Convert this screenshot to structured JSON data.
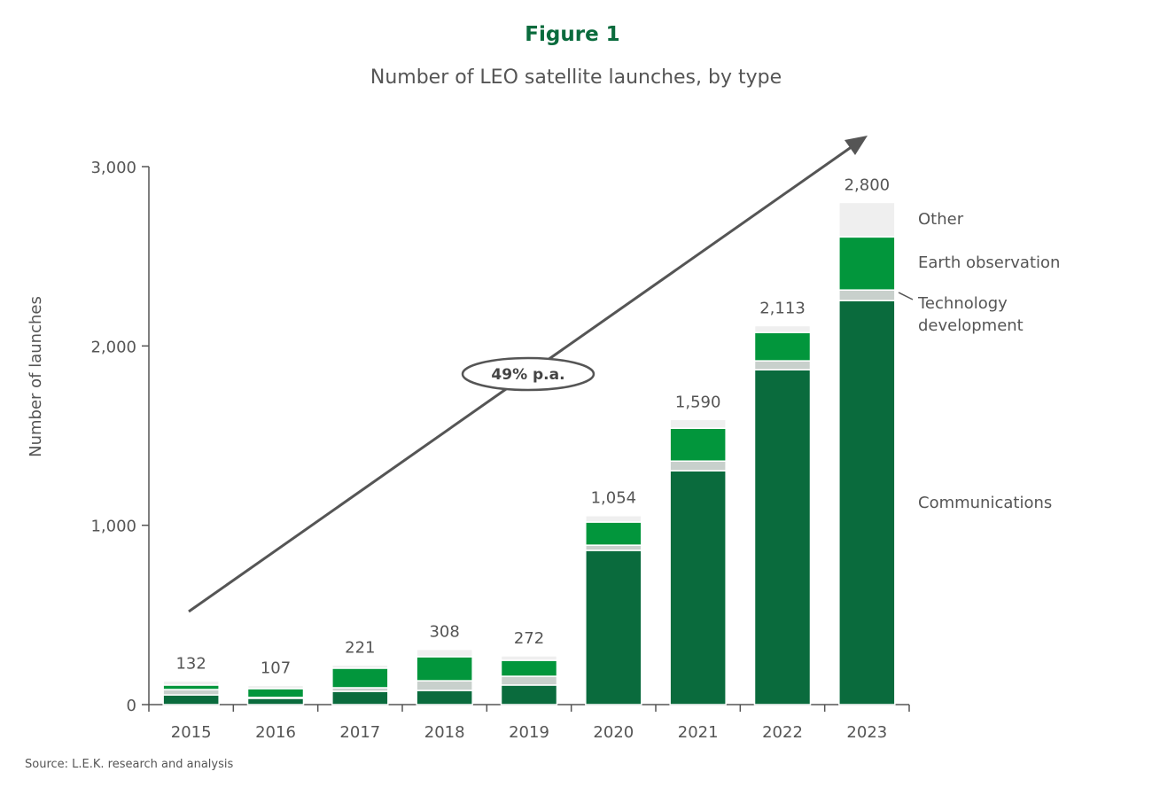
{
  "chart_data": {
    "type": "bar",
    "stacked": true,
    "figure_label": "Figure 1",
    "title": "Number of LEO satellite launches, by type",
    "ylabel": "Number of launches",
    "xlabel": "",
    "ylim": [
      0,
      3000
    ],
    "yticks": [
      0,
      1000,
      2000,
      3000
    ],
    "ytick_labels": [
      "0",
      "1,000",
      "2,000",
      "3,000"
    ],
    "categories": [
      "2015",
      "2016",
      "2017",
      "2018",
      "2019",
      "2020",
      "2021",
      "2022",
      "2023"
    ],
    "series": [
      {
        "name": "Communications",
        "color": "#0a6b3d",
        "values": [
          54,
          35,
          74,
          79,
          109,
          860,
          1304,
          1867,
          2253
        ]
      },
      {
        "name": "Technology development",
        "color": "#c8d0cc",
        "values": [
          30,
          5,
          20,
          54,
          49,
          29,
          54,
          50,
          59
        ]
      },
      {
        "name": "Earth observation",
        "color": "#02963c",
        "values": [
          25,
          49,
          109,
          134,
          89,
          129,
          183,
          158,
          296
        ]
      },
      {
        "name": "Other",
        "color": "#efefef",
        "values": [
          23,
          18,
          18,
          41,
          25,
          36,
          49,
          38,
          192
        ]
      }
    ],
    "totals": [
      "132",
      "107",
      "221",
      "308",
      "272",
      "1,054",
      "1,590",
      "2,113",
      "2,800"
    ],
    "legend_placement": "right, aligned with 2023 bar",
    "legend_labels": [
      "Other",
      "Earth observation",
      "Technology",
      "development",
      "Communications"
    ],
    "annotation": "49% p.a.",
    "source": "Source: L.E.K. research and analysis",
    "grid": false
  }
}
